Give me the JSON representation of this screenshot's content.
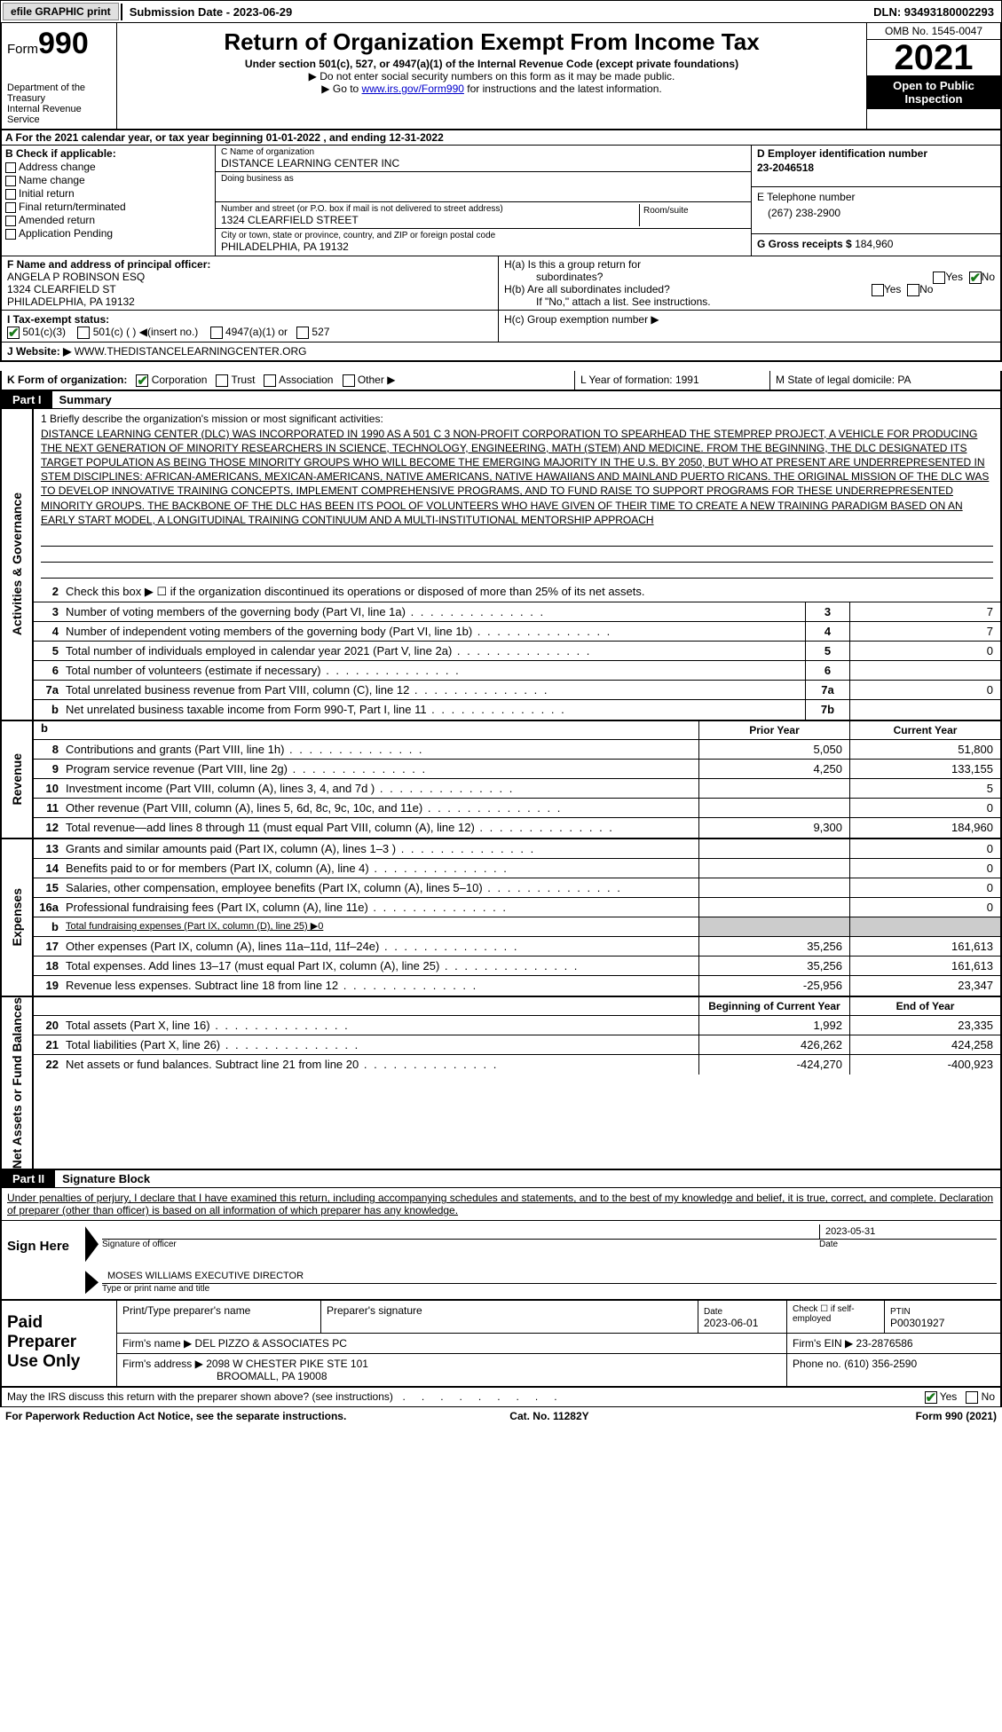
{
  "topbar": {
    "efile": "efile GRAPHIC print",
    "submission": "Submission Date - 2023-06-29",
    "dln": "DLN: 93493180002293"
  },
  "header": {
    "form_word": "Form",
    "form_num": "990",
    "dept": "Department of the Treasury",
    "irs": "Internal Revenue Service",
    "title": "Return of Organization Exempt From Income Tax",
    "sub": "Under section 501(c), 527, or 4947(a)(1) of the Internal Revenue Code (except private foundations)",
    "note1": "▶ Do not enter social security numbers on this form as it may be made public.",
    "note2_a": "▶ Go to ",
    "note2_link": "www.irs.gov/Form990",
    "note2_b": " for instructions and the latest information.",
    "omb": "OMB No. 1545-0047",
    "year": "2021",
    "inspect": "Open to Public Inspection"
  },
  "rowA": "A  For the 2021 calendar year, or tax year beginning 01-01-2022   , and ending 12-31-2022",
  "boxB": {
    "title": "B Check if applicable:",
    "items": [
      "Address change",
      "Name change",
      "Initial return",
      "Final return/terminated",
      "Amended return",
      "Application Pending"
    ]
  },
  "boxC": {
    "name_label": "C Name of organization",
    "name": "DISTANCE LEARNING CENTER INC",
    "dba_label": "Doing business as",
    "addr_label": "Number and street (or P.O. box if mail is not delivered to street address)",
    "addr": "1324 CLEARFIELD STREET",
    "room_label": "Room/suite",
    "city_label": "City or town, state or province, country, and ZIP or foreign postal code",
    "city": "PHILADELPHIA, PA  19132"
  },
  "boxD": {
    "label": "D Employer identification number",
    "ein": "23-2046518",
    "e_label": "E Telephone number",
    "phone": "(267) 238-2900",
    "g_label": "G Gross receipts $",
    "g_val": "184,960"
  },
  "boxF": {
    "label": "F  Name and address of principal officer:",
    "name": "ANGELA P ROBINSON ESQ",
    "addr1": "1324 CLEARFIELD ST",
    "addr2": "PHILADELPHIA, PA  19132"
  },
  "boxH": {
    "a": "H(a)  Is this a group return for",
    "a2": "subordinates?",
    "b": "H(b)  Are all subordinates included?",
    "b2": "If \"No,\" attach a list. See instructions.",
    "c": "H(c)  Group exemption number ▶",
    "yes": "Yes",
    "no": "No"
  },
  "rowI": {
    "label": "I   Tax-exempt status:",
    "o1": "501(c)(3)",
    "o2": "501(c) (  ) ◀(insert no.)",
    "o3": "4947(a)(1) or",
    "o4": "527"
  },
  "rowJ": {
    "label": "J  Website: ▶",
    "val": "WWW.THEDISTANCELEARNINGCENTER.ORG"
  },
  "rowK": {
    "label": "K Form of organization:",
    "o1": "Corporation",
    "o2": "Trust",
    "o3": "Association",
    "o4": "Other ▶",
    "l": "L Year of formation: 1991",
    "m": "M State of legal domicile: PA"
  },
  "part1": {
    "tag": "Part I",
    "title": "Summary"
  },
  "mission": {
    "label": "1  Briefly describe the organization's mission or most significant activities:",
    "text": "DISTANCE LEARNING CENTER (DLC) WAS INCORPORATED IN 1990 AS A 501 C 3 NON-PROFIT CORPORATION TO SPEARHEAD THE STEMPREP PROJECT, A VEHICLE FOR PRODUCING THE NEXT GENERATION OF MINORITY RESEARCHERS IN SCIENCE, TECHNOLOGY, ENGINEERING, MATH (STEM) AND MEDICINE. FROM THE BEGINNING, THE DLC DESIGNATED ITS TARGET POPULATION AS BEING THOSE MINORITY GROUPS WHO WILL BECOME THE EMERGING MAJORITY IN THE U.S. BY 2050, BUT WHO AT PRESENT ARE UNDERREPRESENTED IN STEM DISCIPLINES: AFRICAN-AMERICANS, MEXICAN-AMERICANS, NATIVE AMERICANS, NATIVE HAWAIIANS AND MAINLAND PUERTO RICANS. THE ORIGINAL MISSION OF THE DLC WAS TO DEVELOP INNOVATIVE TRAINING CONCEPTS, IMPLEMENT COMPREHENSIVE PROGRAMS, AND TO FUND RAISE TO SUPPORT PROGRAMS FOR THESE UNDERREPRESENTED MINORITY GROUPS. THE BACKBONE OF THE DLC HAS BEEN ITS POOL OF VOLUNTEERS WHO HAVE GIVEN OF THEIR TIME TO CREATE A NEW TRAINING PARADIGM BASED ON AN EARLY START MODEL, A LONGITUDINAL TRAINING CONTINUUM AND A MULTI-INSTITUTIONAL MENTORSHIP APPROACH"
  },
  "gov_lines": [
    {
      "n": "2",
      "d": "Check this box ▶ ☐  if the organization discontinued its operations or disposed of more than 25% of its net assets."
    },
    {
      "n": "3",
      "d": "Number of voting members of the governing body (Part VI, line 1a)",
      "bn": "3",
      "v": "7"
    },
    {
      "n": "4",
      "d": "Number of independent voting members of the governing body (Part VI, line 1b)",
      "bn": "4",
      "v": "7"
    },
    {
      "n": "5",
      "d": "Total number of individuals employed in calendar year 2021 (Part V, line 2a)",
      "bn": "5",
      "v": "0"
    },
    {
      "n": "6",
      "d": "Total number of volunteers (estimate if necessary)",
      "bn": "6",
      "v": ""
    },
    {
      "n": "7a",
      "d": "Total unrelated business revenue from Part VIII, column (C), line 12",
      "bn": "7a",
      "v": "0"
    },
    {
      "n": "b",
      "d": "Net unrelated business taxable income from Form 990-T, Part I, line 11",
      "bn": "7b",
      "v": ""
    }
  ],
  "col_hdrs": {
    "py": "Prior Year",
    "cy": "Current Year",
    "boy": "Beginning of Current Year",
    "eoy": "End of Year"
  },
  "rev_lines": [
    {
      "n": "8",
      "d": "Contributions and grants (Part VIII, line 1h)",
      "py": "5,050",
      "cy": "51,800"
    },
    {
      "n": "9",
      "d": "Program service revenue (Part VIII, line 2g)",
      "py": "4,250",
      "cy": "133,155"
    },
    {
      "n": "10",
      "d": "Investment income (Part VIII, column (A), lines 3, 4, and 7d )",
      "py": "",
      "cy": "5"
    },
    {
      "n": "11",
      "d": "Other revenue (Part VIII, column (A), lines 5, 6d, 8c, 9c, 10c, and 11e)",
      "py": "",
      "cy": "0"
    },
    {
      "n": "12",
      "d": "Total revenue—add lines 8 through 11 (must equal Part VIII, column (A), line 12)",
      "py": "9,300",
      "cy": "184,960"
    }
  ],
  "exp_lines": [
    {
      "n": "13",
      "d": "Grants and similar amounts paid (Part IX, column (A), lines 1–3 )",
      "py": "",
      "cy": "0"
    },
    {
      "n": "14",
      "d": "Benefits paid to or for members (Part IX, column (A), line 4)",
      "py": "",
      "cy": "0"
    },
    {
      "n": "15",
      "d": "Salaries, other compensation, employee benefits (Part IX, column (A), lines 5–10)",
      "py": "",
      "cy": "0"
    },
    {
      "n": "16a",
      "d": "Professional fundraising fees (Part IX, column (A), line 11e)",
      "py": "",
      "cy": "0"
    },
    {
      "n": "b",
      "d": "Total fundraising expenses (Part IX, column (D), line 25) ▶0",
      "shade": true
    },
    {
      "n": "17",
      "d": "Other expenses (Part IX, column (A), lines 11a–11d, 11f–24e)",
      "py": "35,256",
      "cy": "161,613"
    },
    {
      "n": "18",
      "d": "Total expenses. Add lines 13–17 (must equal Part IX, column (A), line 25)",
      "py": "35,256",
      "cy": "161,613"
    },
    {
      "n": "19",
      "d": "Revenue less expenses. Subtract line 18 from line 12",
      "py": "-25,956",
      "cy": "23,347"
    }
  ],
  "na_lines": [
    {
      "n": "20",
      "d": "Total assets (Part X, line 16)",
      "py": "1,992",
      "cy": "23,335"
    },
    {
      "n": "21",
      "d": "Total liabilities (Part X, line 26)",
      "py": "426,262",
      "cy": "424,258"
    },
    {
      "n": "22",
      "d": "Net assets or fund balances. Subtract line 21 from line 20",
      "py": "-424,270",
      "cy": "-400,923"
    }
  ],
  "vtabs": {
    "gov": "Activities & Governance",
    "rev": "Revenue",
    "exp": "Expenses",
    "na": "Net Assets or Fund Balances"
  },
  "part2": {
    "tag": "Part II",
    "title": "Signature Block"
  },
  "penalty": "Under penalties of perjury, I declare that I have examined this return, including accompanying schedules and statements, and to the best of my knowledge and belief, it is true, correct, and complete. Declaration of preparer (other than officer) is based on all information of which preparer has any knowledge.",
  "sign": {
    "left": "Sign Here",
    "sig_label": "Signature of officer",
    "date": "2023-05-31",
    "date_label": "Date",
    "name": "MOSES WILLIAMS EXECUTIVE DIRECTOR",
    "name_label": "Type or print name and title"
  },
  "prep": {
    "left": "Paid Preparer Use Only",
    "r1": {
      "c1": "Print/Type preparer's name",
      "c2": "Preparer's signature",
      "c3_l": "Date",
      "c3_v": "2023-06-01",
      "c4": "Check ☐ if self-employed",
      "c5_l": "PTIN",
      "c5_v": "P00301927"
    },
    "r2": {
      "l": "Firm's name    ▶",
      "v": "DEL PIZZO & ASSOCIATES PC",
      "r_l": "Firm's EIN ▶",
      "r_v": "23-2876586"
    },
    "r3": {
      "l": "Firm's address ▶",
      "v1": "2098 W CHESTER PIKE STE 101",
      "v2": "BROOMALL, PA  19008",
      "r_l": "Phone no.",
      "r_v": "(610) 356-2590"
    }
  },
  "bottom": {
    "q": "May the IRS discuss this return with the preparer shown above? (see instructions)",
    "yes": "Yes",
    "no": "No"
  },
  "footer": {
    "l": "For Paperwork Reduction Act Notice, see the separate instructions.",
    "m": "Cat. No. 11282Y",
    "r": "Form 990 (2021)"
  }
}
